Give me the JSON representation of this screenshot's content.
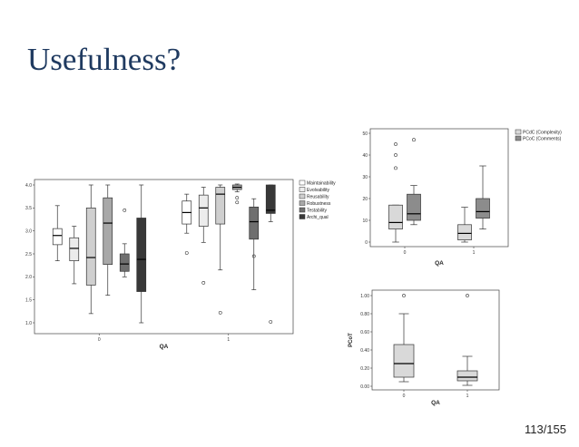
{
  "slide": {
    "title": "Usefulness?",
    "page_number": "113/155"
  },
  "chart_data": [
    {
      "type": "box",
      "xlabel": "QA",
      "ylabel": "",
      "ylim": [
        1.0,
        4.0
      ],
      "yticks": [
        "1.0",
        "1.5",
        "2.0",
        "2.5",
        "3.0",
        "3.5",
        "4.0"
      ],
      "categories": [
        "0",
        "1"
      ],
      "legend_position": "right",
      "series": [
        {
          "name": "Maintainability",
          "color": "#ffffff",
          "boxes": [
            {
              "min": 2.35,
              "q1": 2.7,
              "median": 2.9,
              "q3": 3.05,
              "max": 3.55,
              "outliers": []
            },
            {
              "min": 2.95,
              "q1": 3.15,
              "median": 3.4,
              "q3": 3.65,
              "max": 3.8,
              "outliers": [
                2.52
              ]
            }
          ]
        },
        {
          "name": "Evolvability",
          "color": "#ececec",
          "boxes": [
            {
              "min": 1.85,
              "q1": 2.35,
              "median": 2.62,
              "q3": 2.85,
              "max": 3.1,
              "outliers": []
            },
            {
              "min": 2.75,
              "q1": 3.1,
              "median": 3.5,
              "q3": 3.78,
              "max": 3.95,
              "outliers": [
                1.87
              ]
            }
          ]
        },
        {
          "name": "Reusability",
          "color": "#cfcfcf",
          "boxes": [
            {
              "min": 1.2,
              "q1": 1.82,
              "median": 2.42,
              "q3": 3.5,
              "max": 4.0,
              "outliers": []
            },
            {
              "min": 2.15,
              "q1": 3.15,
              "median": 3.8,
              "q3": 3.95,
              "max": 4.0,
              "outliers": [
                1.22
              ]
            }
          ]
        },
        {
          "name": "Robustness",
          "color": "#a8a8a8",
          "boxes": [
            {
              "min": 1.6,
              "q1": 2.27,
              "median": 3.17,
              "q3": 3.72,
              "max": 4.0,
              "outliers": []
            },
            {
              "min": 3.85,
              "q1": 3.9,
              "median": 3.95,
              "q3": 4.0,
              "max": 4.02,
              "outliers": [
                3.72,
                3.62
              ]
            }
          ]
        },
        {
          "name": "Testability",
          "color": "#6f6f6f",
          "boxes": [
            {
              "min": 2.0,
              "q1": 2.12,
              "median": 2.28,
              "q3": 2.5,
              "max": 2.72,
              "outliers": [
                3.45
              ]
            },
            {
              "min": 1.72,
              "q1": 2.82,
              "median": 3.2,
              "q3": 3.52,
              "max": 3.7,
              "outliers": [
                2.45
              ]
            }
          ]
        },
        {
          "name": "Archi_qual",
          "color": "#383838",
          "boxes": [
            {
              "min": 1.0,
              "q1": 1.68,
              "median": 2.38,
              "q3": 3.28,
              "max": 4.0,
              "outliers": []
            },
            {
              "min": 3.2,
              "q1": 3.38,
              "median": 3.45,
              "q3": 4.0,
              "max": 4.0,
              "outliers": [
                1.02
              ]
            }
          ]
        }
      ]
    },
    {
      "type": "box",
      "xlabel": "QA",
      "ylabel": "",
      "ylim": [
        0,
        50
      ],
      "yticks": [
        "0",
        "10",
        "20",
        "30",
        "40",
        "50"
      ],
      "categories": [
        "0",
        "1"
      ],
      "legend_position": "right",
      "series": [
        {
          "name": "PCdC (Complexity)",
          "color": "#d9d9d9",
          "boxes": [
            {
              "min": 0,
              "q1": 6,
              "median": 9,
              "q3": 17,
              "max": 17,
              "outliers": [
                34,
                40,
                45
              ]
            },
            {
              "min": 0,
              "q1": 1,
              "median": 4,
              "q3": 8,
              "max": 16,
              "outliers": []
            }
          ]
        },
        {
          "name": "PCoC (Comments)",
          "color": "#8c8c8c",
          "boxes": [
            {
              "min": 8,
              "q1": 10,
              "median": 13,
              "q3": 22,
              "max": 26,
              "outliers": [
                47
              ]
            },
            {
              "min": 6,
              "q1": 11,
              "median": 14,
              "q3": 20,
              "max": 35,
              "outliers": []
            }
          ]
        }
      ]
    },
    {
      "type": "box",
      "xlabel": "QA",
      "ylabel": "PCoT",
      "ylim": [
        0,
        1.0
      ],
      "yticks": [
        "0.00",
        "0.20",
        "0.40",
        "0.60",
        "0.80",
        "1.00"
      ],
      "categories": [
        "0",
        "1"
      ],
      "series": [
        {
          "name": "",
          "color": "#d9d9d9",
          "boxes": [
            {
              "min": 0.05,
              "q1": 0.1,
              "median": 0.25,
              "q3": 0.46,
              "max": 0.8,
              "outliers": [
                1.0
              ]
            },
            {
              "min": 0.01,
              "q1": 0.06,
              "median": 0.1,
              "q3": 0.17,
              "max": 0.33,
              "outliers": [
                1.0
              ]
            }
          ]
        }
      ]
    }
  ]
}
